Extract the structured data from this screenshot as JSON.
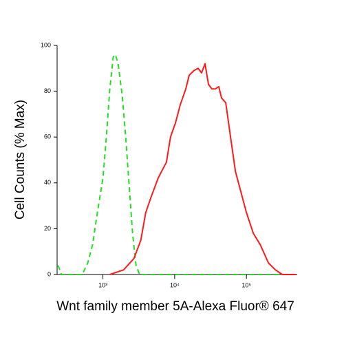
{
  "chart_data": {
    "type": "line",
    "x_label": "Wnt family member 5A-Alexa Fluor® 647",
    "y_label": "Cell Counts (% Max)",
    "xscale": "log",
    "xlim": [
      230,
      510000
    ],
    "ylim": [
      0,
      100
    ],
    "xticks": [
      {
        "value": 1000,
        "label": "10³"
      },
      {
        "value": 10000,
        "label": "10⁴"
      },
      {
        "value": 100000,
        "label": "10⁵"
      }
    ],
    "yticks": [
      0,
      20,
      40,
      60,
      80,
      100
    ],
    "series": [
      {
        "color": "#22dd22",
        "dashed": true,
        "x": [
          237,
          265,
          515,
          614,
          718,
          837,
          1000,
          1117,
          1248,
          1394,
          1489,
          1628,
          1859,
          2076,
          2318,
          2588,
          2894,
          3236,
          492000
        ],
        "values": [
          4,
          0,
          0,
          5,
          13,
          27,
          42,
          60,
          81,
          95,
          96,
          92,
          78,
          60,
          39,
          18,
          4,
          0,
          0
        ]
      },
      {
        "color": "#ff1a1a",
        "dashed": false,
        "x": [
          1248,
          1942,
          2710,
          3380,
          3945,
          4710,
          5875,
          6565,
          7670,
          8750,
          10230,
          11940,
          14260,
          15920,
          18580,
          21230,
          23720,
          26490,
          29580,
          33040,
          36900,
          41220,
          45080,
          51500,
          60120,
          70210,
          83800,
          100000,
          124800,
          155700,
          203300,
          253600,
          316200,
          492000
        ],
        "values": [
          0,
          2,
          7,
          15,
          27,
          34,
          42,
          45,
          49,
          60,
          66,
          74,
          81,
          87,
          89,
          90,
          88,
          92,
          83,
          81,
          81,
          82,
          77,
          75,
          60,
          45,
          36,
          27,
          18,
          13,
          5,
          2,
          0,
          0
        ]
      }
    ]
  }
}
